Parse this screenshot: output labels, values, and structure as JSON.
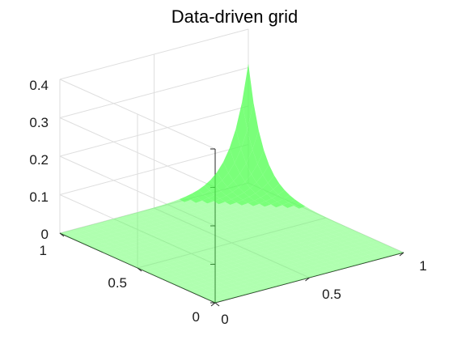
{
  "chart_data": {
    "type": "surface",
    "title": "Data-driven grid",
    "xlabel": "",
    "ylabel": "",
    "zlabel": "",
    "xlim": [
      0,
      1
    ],
    "ylim": [
      0,
      1
    ],
    "zlim": [
      0,
      0.4
    ],
    "x_ticks": [
      "0",
      "0.5",
      "1"
    ],
    "y_ticks": [
      "0",
      "0.5",
      "1"
    ],
    "z_ticks": [
      "0",
      "0.1",
      "0.2",
      "0.3",
      "0.4"
    ],
    "grid": true,
    "surface_color": "#4dff4d",
    "surface_opacity": 0.45,
    "surface_shape": "sharp peak at the far corner, flat near zero elsewhere",
    "peak": {
      "x": 1,
      "y": 1,
      "z": 0.31
    }
  }
}
